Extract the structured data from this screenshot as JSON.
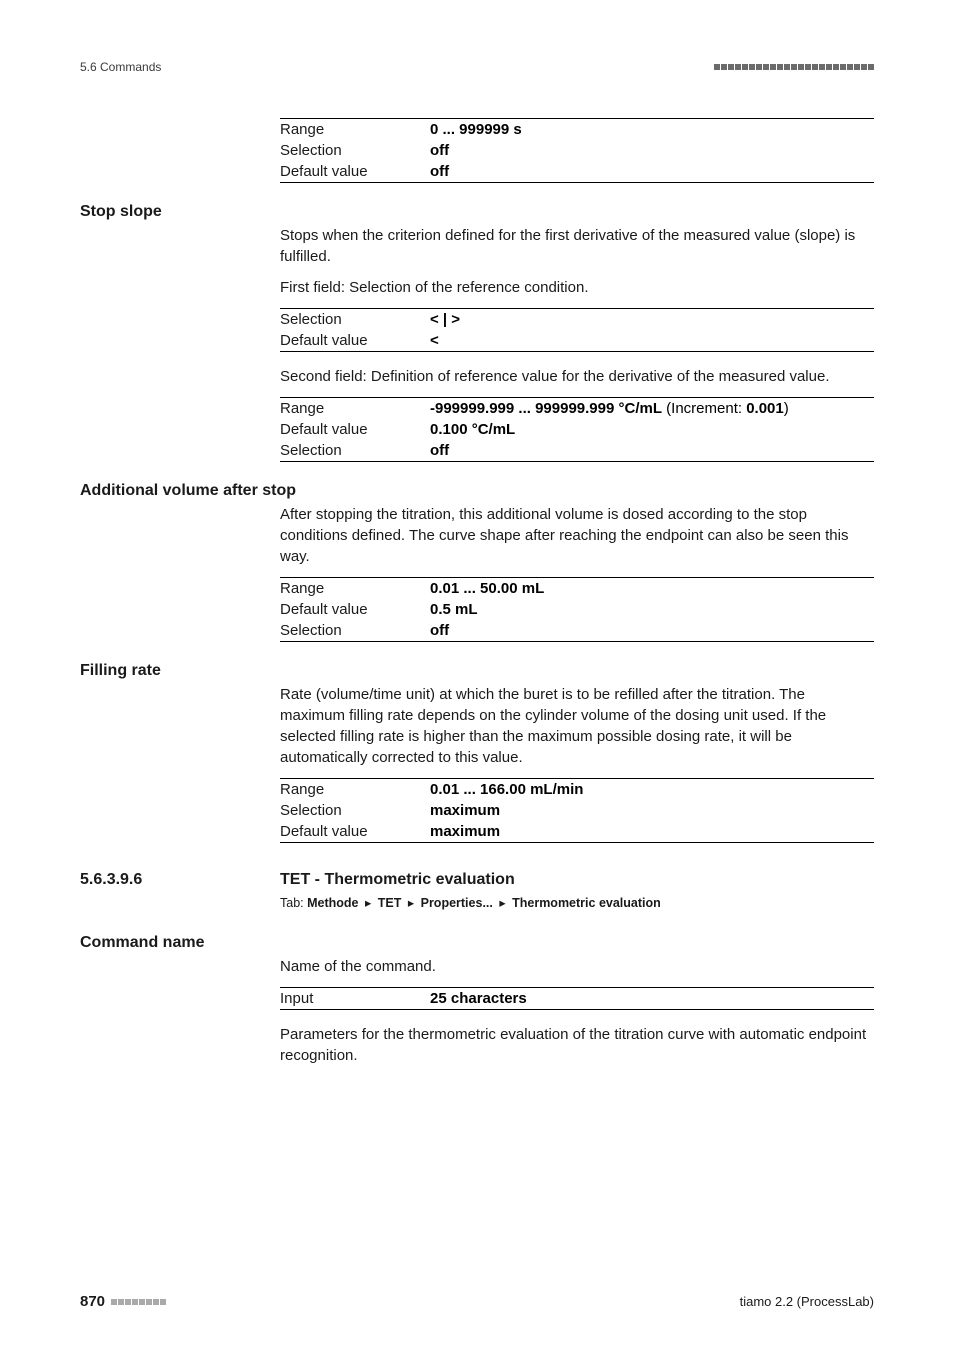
{
  "header": {
    "left": "5.6 Commands",
    "dots_count": 23,
    "dots_color": "#6b6b6b"
  },
  "top_table": {
    "rows": [
      {
        "key": "Range",
        "val": "0 ... 999999 s"
      },
      {
        "key": "Selection",
        "val": "off"
      },
      {
        "key": "Default value",
        "val": "off"
      }
    ]
  },
  "stop_slope": {
    "heading": "Stop slope",
    "para1": "Stops when the criterion defined for the first derivative of the measured value (slope) is fulfilled.",
    "para2": "First field: Selection of the reference condition.",
    "table1": {
      "rows": [
        {
          "key": "Selection",
          "val": "< | >"
        },
        {
          "key": "Default value",
          "val": "<"
        }
      ]
    },
    "para3": "Second field: Definition of reference value for the derivative of the measured value.",
    "table2": {
      "rows": [
        {
          "key": "Range",
          "val": "-999999.999 ... 999999.999 °C/mL",
          "suffix": " (Increment: ",
          "suffix2": "0.001",
          "suffix3": ")"
        },
        {
          "key": "Default value",
          "val": "0.100 °C/mL"
        },
        {
          "key": "Selection",
          "val": "off"
        }
      ]
    }
  },
  "add_vol": {
    "heading": "Additional volume after stop",
    "para": "After stopping the titration, this additional volume is dosed according to the stop conditions defined. The curve shape after reaching the endpoint can also be seen this way.",
    "table": {
      "rows": [
        {
          "key": "Range",
          "val": "0.01 ... 50.00 mL"
        },
        {
          "key": "Default value",
          "val": "0.5 mL"
        },
        {
          "key": "Selection",
          "val": "off"
        }
      ]
    }
  },
  "filling_rate": {
    "heading": "Filling rate",
    "para": "Rate (volume/time unit) at which the buret is to be refilled after the titration. The maximum filling rate depends on the cylinder volume of the dosing unit used. If the selected filling rate is higher than the maximum possible dosing rate, it will be automatically corrected to this value.",
    "table": {
      "rows": [
        {
          "key": "Range",
          "val": "0.01 ... 166.00 mL/min"
        },
        {
          "key": "Selection",
          "val": "maximum"
        },
        {
          "key": "Default value",
          "val": "maximum"
        }
      ]
    }
  },
  "subsection": {
    "num": "5.6.3.9.6",
    "title": "TET - Thermometric evaluation",
    "tab_prefix": "Tab:",
    "crumbs": [
      "Methode",
      "TET",
      "Properties...",
      "Thermometric evaluation"
    ]
  },
  "command_name": {
    "heading": "Command name",
    "para1": "Name of the command.",
    "table": {
      "rows": [
        {
          "key": "Input",
          "val": "25 characters"
        }
      ]
    },
    "para2": "Parameters for the thermometric evaluation of the titration curve with automatic endpoint recognition."
  },
  "footer": {
    "page": "870",
    "dots_count": 8,
    "dots_color": "#aaaaaa",
    "right": "tiamo 2.2 (ProcessLab)"
  }
}
